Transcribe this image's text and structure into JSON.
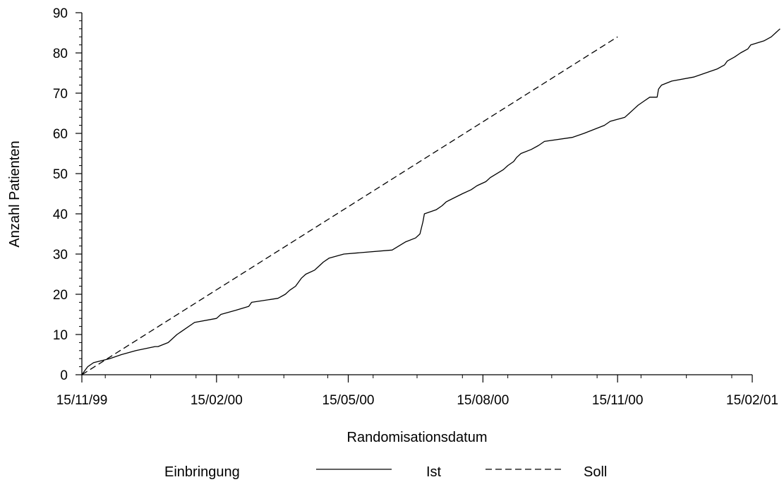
{
  "chart_data": {
    "type": "line",
    "title": "",
    "xlabel": "Randomisationsdatum",
    "ylabel": "Anzahl Patienten",
    "x_type": "date",
    "x_format": "DD/MM/YY",
    "xlim": [
      "1999-11-15",
      "2001-02-15"
    ],
    "ylim": [
      0,
      90
    ],
    "x_ticks": [
      {
        "date": "1999-11-15",
        "label": "15/11/99"
      },
      {
        "date": "2000-02-15",
        "label": "15/02/00"
      },
      {
        "date": "2000-05-15",
        "label": "15/05/00"
      },
      {
        "date": "2000-08-15",
        "label": "15/08/00"
      },
      {
        "date": "2000-11-15",
        "label": "15/11/00"
      },
      {
        "date": "2001-02-15",
        "label": "15/02/01"
      }
    ],
    "y_ticks": [
      0,
      10,
      20,
      30,
      40,
      50,
      60,
      70,
      80,
      90
    ],
    "grid": false,
    "legend": {
      "position": "bottom",
      "title": "Einbringung",
      "entries": [
        "Ist",
        "Soll"
      ]
    },
    "series": [
      {
        "name": "Ist",
        "line_style": "solid",
        "color": "#000000",
        "points": [
          [
            "1999-11-15",
            0
          ],
          [
            "1999-11-17",
            1
          ],
          [
            "1999-11-19",
            2
          ],
          [
            "1999-11-23",
            3
          ],
          [
            "1999-12-04",
            4
          ],
          [
            "1999-12-12",
            5
          ],
          [
            "1999-12-22",
            6
          ],
          [
            "2000-01-04",
            7
          ],
          [
            "2000-01-06",
            7
          ],
          [
            "2000-01-13",
            8
          ],
          [
            "2000-01-19",
            10
          ],
          [
            "2000-01-23",
            11
          ],
          [
            "2000-01-31",
            13
          ],
          [
            "2000-02-15",
            14
          ],
          [
            "2000-02-18",
            15
          ],
          [
            "2000-02-28",
            16
          ],
          [
            "2000-03-08",
            17
          ],
          [
            "2000-03-10",
            18
          ],
          [
            "2000-03-28",
            19
          ],
          [
            "2000-04-02",
            20
          ],
          [
            "2000-04-05",
            21
          ],
          [
            "2000-04-09",
            22
          ],
          [
            "2000-04-13",
            24
          ],
          [
            "2000-04-16",
            25
          ],
          [
            "2000-04-22",
            26
          ],
          [
            "2000-04-25",
            27
          ],
          [
            "2000-04-28",
            28
          ],
          [
            "2000-05-02",
            29
          ],
          [
            "2000-05-12",
            30
          ],
          [
            "2000-06-14",
            31
          ],
          [
            "2000-06-23",
            33
          ],
          [
            "2000-06-30",
            34
          ],
          [
            "2000-07-03",
            35
          ],
          [
            "2000-07-05",
            38
          ],
          [
            "2000-07-06",
            40
          ],
          [
            "2000-07-14",
            41
          ],
          [
            "2000-07-18",
            42
          ],
          [
            "2000-07-21",
            43
          ],
          [
            "2000-08-01",
            45
          ],
          [
            "2000-08-07",
            46
          ],
          [
            "2000-08-11",
            47
          ],
          [
            "2000-08-17",
            48
          ],
          [
            "2000-08-20",
            49
          ],
          [
            "2000-08-29",
            51
          ],
          [
            "2000-09-01",
            52
          ],
          [
            "2000-09-05",
            53
          ],
          [
            "2000-09-07",
            54
          ],
          [
            "2000-09-10",
            55
          ],
          [
            "2000-09-17",
            56
          ],
          [
            "2000-09-22",
            57
          ],
          [
            "2000-09-26",
            58
          ],
          [
            "2000-10-15",
            59
          ],
          [
            "2000-10-23",
            60
          ],
          [
            "2000-11-06",
            62
          ],
          [
            "2000-11-10",
            63
          ],
          [
            "2000-11-20",
            64
          ],
          [
            "2000-11-23",
            65
          ],
          [
            "2000-11-26",
            66
          ],
          [
            "2000-11-29",
            67
          ],
          [
            "2000-12-03",
            68
          ],
          [
            "2000-12-07",
            69
          ],
          [
            "2000-12-12",
            69
          ],
          [
            "2000-12-13",
            71
          ],
          [
            "2000-12-15",
            72
          ],
          [
            "2000-12-22",
            73
          ],
          [
            "2001-01-06",
            74
          ],
          [
            "2001-01-14",
            75
          ],
          [
            "2001-01-22",
            76
          ],
          [
            "2001-01-27",
            77
          ],
          [
            "2001-01-29",
            78
          ],
          [
            "2001-02-03",
            79
          ],
          [
            "2001-02-07",
            80
          ],
          [
            "2001-02-12",
            81
          ],
          [
            "2001-02-14",
            82
          ],
          [
            "2001-02-23",
            83
          ],
          [
            "2001-02-28",
            84
          ],
          [
            "2001-03-03",
            85
          ],
          [
            "2001-03-06",
            86
          ]
        ]
      },
      {
        "name": "Soll",
        "line_style": "dashed",
        "color": "#000000",
        "points": [
          [
            "1999-11-15",
            0
          ],
          [
            "2000-11-15",
            84
          ]
        ]
      }
    ]
  }
}
